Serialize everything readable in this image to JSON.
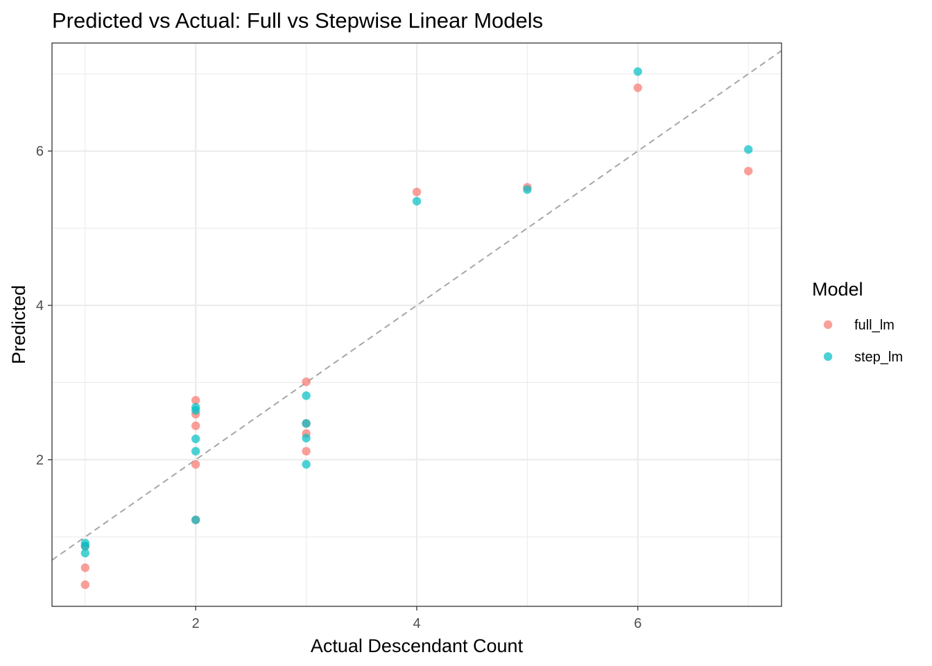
{
  "chart_data": {
    "type": "scatter",
    "title": "Predicted vs Actual: Full vs Stepwise Linear Models",
    "xlabel": "Actual Descendant Count",
    "ylabel": "Predicted",
    "xlim": [
      0.7,
      7.3
    ],
    "ylim": [
      0.1,
      7.4
    ],
    "x_ticks": [
      2,
      4,
      6
    ],
    "y_ticks": [
      2,
      4,
      6
    ],
    "grid": true,
    "reference_line": {
      "type": "identity",
      "style": "dashed",
      "color": "#a6a6a6"
    },
    "legend": {
      "title": "Model",
      "position": "right"
    },
    "series": [
      {
        "name": "full_lm",
        "color": "#F8766D",
        "points": [
          {
            "x": 1,
            "y": 0.38
          },
          {
            "x": 1,
            "y": 0.6
          },
          {
            "x": 1,
            "y": 0.88
          },
          {
            "x": 2,
            "y": 1.22
          },
          {
            "x": 2,
            "y": 1.94
          },
          {
            "x": 2,
            "y": 2.44
          },
          {
            "x": 2,
            "y": 2.59
          },
          {
            "x": 2,
            "y": 2.77
          },
          {
            "x": 3,
            "y": 2.11
          },
          {
            "x": 3,
            "y": 2.34
          },
          {
            "x": 3,
            "y": 2.47
          },
          {
            "x": 3,
            "y": 3.01
          },
          {
            "x": 4,
            "y": 5.47
          },
          {
            "x": 5,
            "y": 5.53
          },
          {
            "x": 6,
            "y": 6.82
          },
          {
            "x": 7,
            "y": 5.74
          }
        ]
      },
      {
        "name": "step_lm",
        "color": "#00BFC4",
        "points": [
          {
            "x": 1,
            "y": 0.79
          },
          {
            "x": 1,
            "y": 0.88
          },
          {
            "x": 1,
            "y": 0.92
          },
          {
            "x": 2,
            "y": 1.22
          },
          {
            "x": 2,
            "y": 2.11
          },
          {
            "x": 2,
            "y": 2.27
          },
          {
            "x": 2,
            "y": 2.64
          },
          {
            "x": 2,
            "y": 2.68
          },
          {
            "x": 3,
            "y": 1.94
          },
          {
            "x": 3,
            "y": 2.28
          },
          {
            "x": 3,
            "y": 2.47
          },
          {
            "x": 3,
            "y": 2.83
          },
          {
            "x": 4,
            "y": 5.35
          },
          {
            "x": 5,
            "y": 5.5
          },
          {
            "x": 6,
            "y": 7.03
          },
          {
            "x": 7,
            "y": 6.02
          }
        ]
      }
    ]
  }
}
